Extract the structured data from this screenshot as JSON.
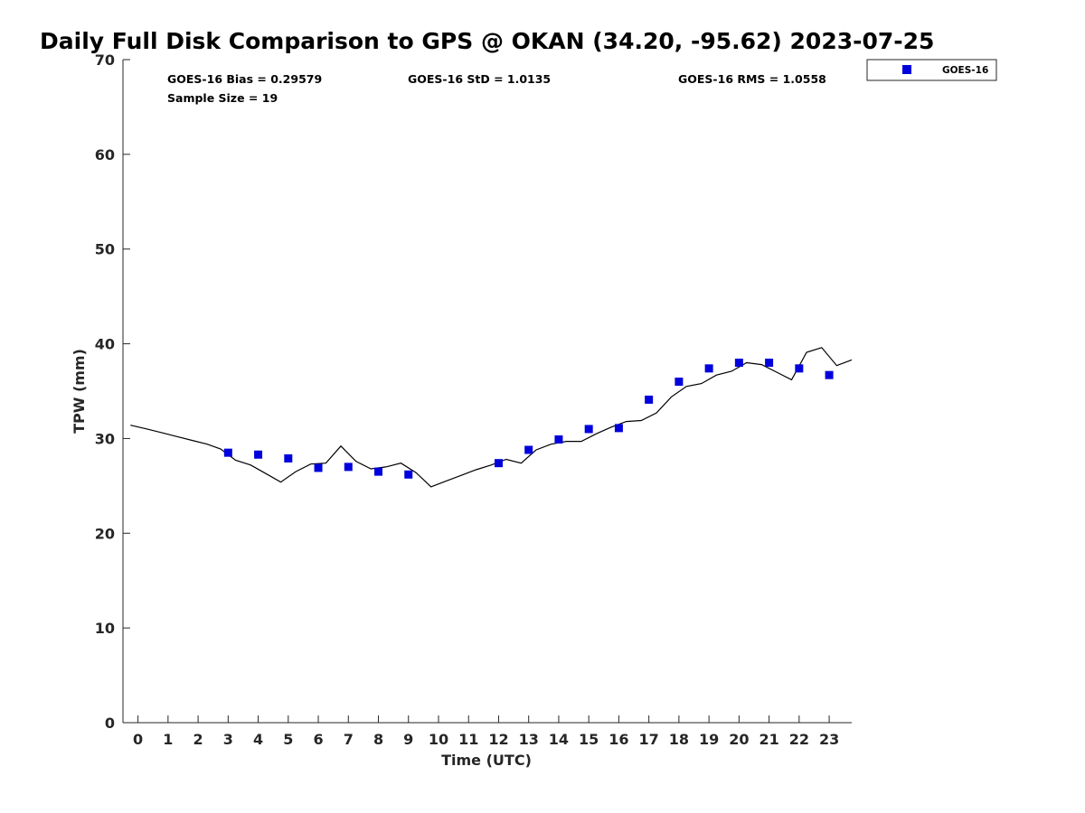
{
  "chart_data": {
    "type": "scatter",
    "title": "Daily Full Disk Comparison to GPS @ OKAN (34.20, -95.62) 2023-07-25",
    "xlabel": "Time (UTC)",
    "ylabel": "TPW (mm)",
    "xlim": [
      -0.5,
      23.75
    ],
    "ylim": [
      0,
      70
    ],
    "x_ticks": [
      "0",
      "1",
      "2",
      "3",
      "4",
      "5",
      "6",
      "7",
      "8",
      "9",
      "10",
      "11",
      "12",
      "13",
      "14",
      "15",
      "16",
      "17",
      "18",
      "19",
      "20",
      "21",
      "22",
      "23"
    ],
    "y_ticks": [
      "0",
      "10",
      "20",
      "30",
      "40",
      "50",
      "60",
      "70"
    ],
    "grid": false,
    "legend_placement": "top-right",
    "stats": {
      "bias": "GOES-16 Bias = 0.29579",
      "std": "GOES-16 StD = 1.0135",
      "rms": "GOES-16 RMS = 1.0558",
      "sample_size": "Sample Size = 19"
    },
    "series": [
      {
        "name": "GOES-16",
        "kind": "markers",
        "marker": "square",
        "color": "#0000dd",
        "x": [
          3,
          4,
          5,
          6,
          7,
          8,
          9,
          12,
          13,
          14,
          15,
          16,
          17,
          18,
          19,
          20,
          21,
          22,
          23
        ],
        "y": [
          28.5,
          28.3,
          27.9,
          26.9,
          27.0,
          26.5,
          26.2,
          27.4,
          28.8,
          29.9,
          31.0,
          31.1,
          34.1,
          36.0,
          37.4,
          38.0,
          38.0,
          37.4,
          36.7
        ]
      },
      {
        "kind": "line",
        "color": "#000000",
        "x": [
          -0.25,
          0.3,
          0.8,
          1.3,
          1.8,
          2.3,
          2.75,
          3.25,
          3.75,
          4.25,
          4.75,
          5.25,
          5.75,
          6.25,
          6.75,
          7.25,
          7.75,
          8.25,
          8.75,
          9.25,
          9.75,
          10.25,
          10.75,
          11.25,
          11.75,
          12.25,
          12.75,
          13.25,
          13.75,
          14.25,
          14.75,
          15.25,
          15.75,
          16.25,
          16.75,
          17.25,
          17.75,
          18.25,
          18.75,
          19.25,
          19.75,
          20.25,
          20.75,
          21.25,
          21.75,
          22.25,
          22.75,
          23.25,
          23.75
        ],
        "y": [
          31.4,
          31.0,
          30.6,
          30.2,
          29.8,
          29.4,
          28.9,
          27.7,
          27.2,
          26.3,
          25.4,
          26.5,
          27.3,
          27.4,
          29.2,
          27.6,
          26.8,
          27.0,
          27.4,
          26.4,
          24.9,
          25.5,
          26.1,
          26.7,
          27.2,
          27.8,
          27.4,
          28.8,
          29.4,
          29.7,
          29.7,
          30.5,
          31.2,
          31.8,
          31.9,
          32.7,
          34.4,
          35.5,
          35.8,
          36.7,
          37.1,
          38.0,
          37.8,
          37.0,
          36.2,
          39.1,
          39.6,
          37.7,
          38.3
        ]
      }
    ]
  }
}
